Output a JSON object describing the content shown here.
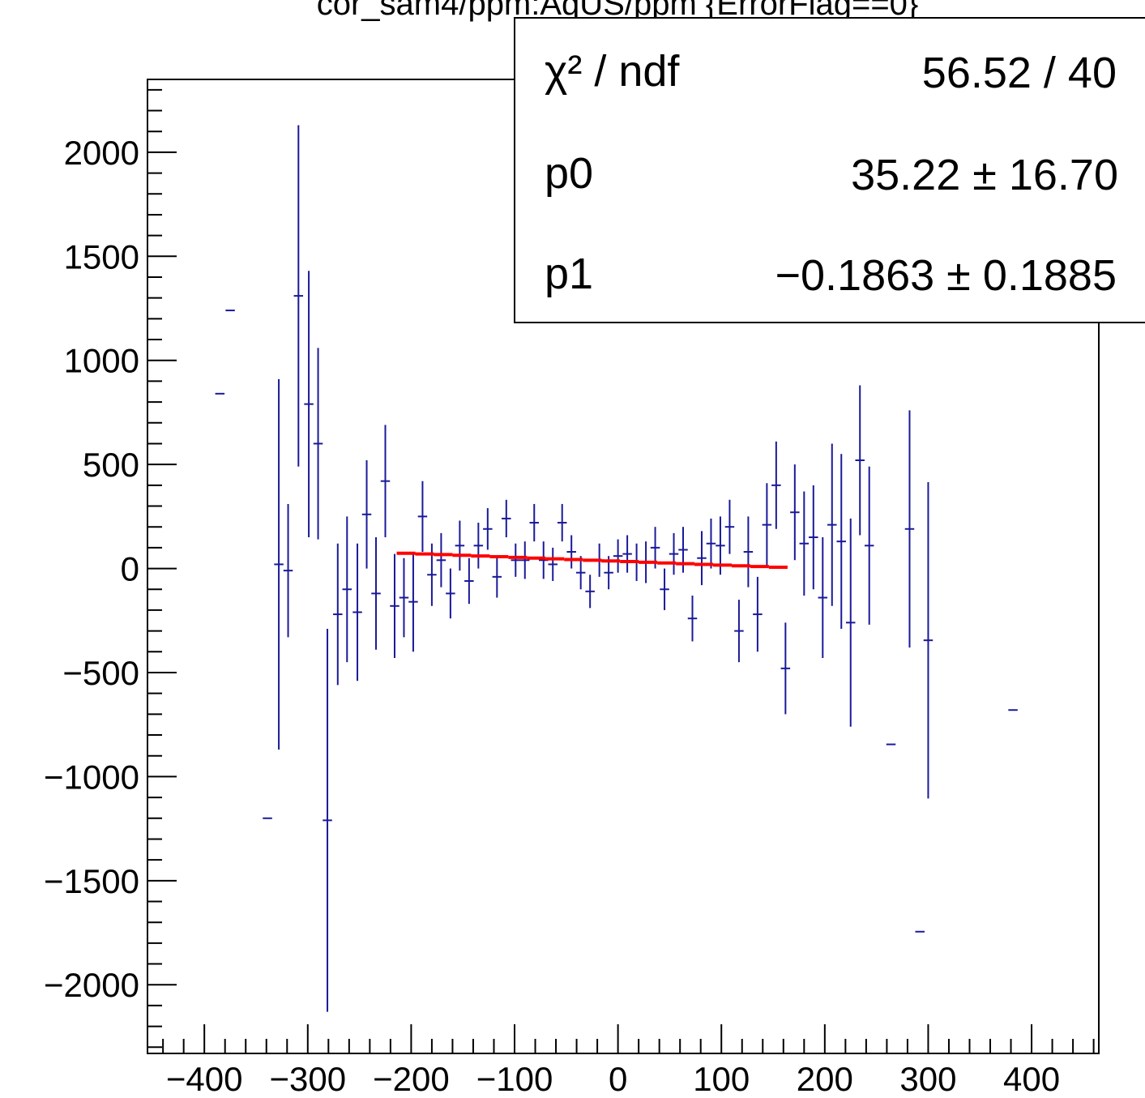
{
  "chart_data": {
    "type": "scatter",
    "title": "cor_sam4/ppm:AqUS/ppm {ErrorFlag==0}",
    "xlabel": "",
    "ylabel": "",
    "xlim": [
      -455,
      465
    ],
    "ylim": [
      -2330,
      2350
    ],
    "grid": false,
    "legend": "none",
    "x_ticks": [
      -400,
      -300,
      -200,
      -100,
      0,
      100,
      200,
      300,
      400
    ],
    "x_tick_labels": [
      "−400",
      "−300",
      "−200",
      "−100",
      "0",
      "100",
      "200",
      "300",
      "400"
    ],
    "y_ticks": [
      2000,
      1500,
      1000,
      500,
      0,
      -500,
      -1000,
      -1500,
      -2000
    ],
    "y_tick_labels": [
      "2000",
      "1500",
      "1000",
      "500",
      "0",
      "−500",
      "−1000",
      "−1500",
      "−2000"
    ],
    "colors": {
      "points": "#1a1a99",
      "fit": "#ff0000",
      "axis": "#000000"
    },
    "series": [
      {
        "type": "errorbar",
        "bin_half_width": 4.5,
        "points": [
          {
            "x": -385,
            "y": 840,
            "err": 0
          },
          {
            "x": -375,
            "y": 1240,
            "err": 0
          },
          {
            "x": -339,
            "y": -1200,
            "err": 0
          },
          {
            "x": -328,
            "y": 20,
            "err": 890
          },
          {
            "x": -319,
            "y": -10,
            "err": 320
          },
          {
            "x": -309,
            "y": 1310,
            "err": 820
          },
          {
            "x": -299,
            "y": 790,
            "err": 640
          },
          {
            "x": -290,
            "y": 600,
            "err": 460
          },
          {
            "x": -281,
            "y": -1210,
            "err": 920
          },
          {
            "x": -271,
            "y": -220,
            "err": 340
          },
          {
            "x": -262,
            "y": -100,
            "err": 350
          },
          {
            "x": -252,
            "y": -210,
            "err": 330
          },
          {
            "x": -243,
            "y": 260,
            "err": 260
          },
          {
            "x": -234,
            "y": -120,
            "err": 270
          },
          {
            "x": -225,
            "y": 420,
            "err": 270
          },
          {
            "x": -216,
            "y": -180,
            "err": 250
          },
          {
            "x": -207,
            "y": -140,
            "err": 190
          },
          {
            "x": -198,
            "y": -160,
            "err": 240
          },
          {
            "x": -189,
            "y": 250,
            "err": 170
          },
          {
            "x": -180,
            "y": -30,
            "err": 150
          },
          {
            "x": -171,
            "y": 40,
            "err": 130
          },
          {
            "x": -162,
            "y": -120,
            "err": 120
          },
          {
            "x": -153,
            "y": 110,
            "err": 120
          },
          {
            "x": -144,
            "y": -60,
            "err": 110
          },
          {
            "x": -135,
            "y": 110,
            "err": 110
          },
          {
            "x": -126,
            "y": 190,
            "err": 100
          },
          {
            "x": -117,
            "y": -40,
            "err": 100
          },
          {
            "x": -108,
            "y": 240,
            "err": 90
          },
          {
            "x": -99,
            "y": 40,
            "err": 80
          },
          {
            "x": -90,
            "y": 40,
            "err": 90
          },
          {
            "x": -81,
            "y": 220,
            "err": 90
          },
          {
            "x": -72,
            "y": 40,
            "err": 90
          },
          {
            "x": -63,
            "y": 20,
            "err": 80
          },
          {
            "x": -54,
            "y": 220,
            "err": 90
          },
          {
            "x": -45,
            "y": 80,
            "err": 80
          },
          {
            "x": -36,
            "y": -20,
            "err": 80
          },
          {
            "x": -27,
            "y": -110,
            "err": 80
          },
          {
            "x": -18,
            "y": 40,
            "err": 80
          },
          {
            "x": -9,
            "y": -20,
            "err": 80
          },
          {
            "x": 0,
            "y": 60,
            "err": 80
          },
          {
            "x": 9,
            "y": 70,
            "err": 90
          },
          {
            "x": 18,
            "y": 30,
            "err": 90
          },
          {
            "x": 27,
            "y": 30,
            "err": 100
          },
          {
            "x": 36,
            "y": 100,
            "err": 100
          },
          {
            "x": 45,
            "y": -100,
            "err": 100
          },
          {
            "x": 54,
            "y": 70,
            "err": 100
          },
          {
            "x": 63,
            "y": 90,
            "err": 110
          },
          {
            "x": 72,
            "y": -240,
            "err": 110
          },
          {
            "x": 81,
            "y": 50,
            "err": 130
          },
          {
            "x": 90,
            "y": 120,
            "err": 120
          },
          {
            "x": 99,
            "y": 110,
            "err": 140
          },
          {
            "x": 108,
            "y": 200,
            "err": 130
          },
          {
            "x": 117,
            "y": -300,
            "err": 150
          },
          {
            "x": 126,
            "y": 80,
            "err": 170
          },
          {
            "x": 135,
            "y": -220,
            "err": 180
          },
          {
            "x": 144,
            "y": 210,
            "err": 200
          },
          {
            "x": 153,
            "y": 400,
            "err": 210
          },
          {
            "x": 162,
            "y": -480,
            "err": 220
          },
          {
            "x": 171,
            "y": 270,
            "err": 230
          },
          {
            "x": 180,
            "y": 120,
            "err": 250
          },
          {
            "x": 189,
            "y": 150,
            "err": 250
          },
          {
            "x": 198,
            "y": -140,
            "err": 290
          },
          {
            "x": 207,
            "y": 210,
            "err": 390
          },
          {
            "x": 216,
            "y": 130,
            "err": 420
          },
          {
            "x": 225,
            "y": -260,
            "err": 500
          },
          {
            "x": 234,
            "y": 520,
            "err": 360
          },
          {
            "x": 243,
            "y": 110,
            "err": 380
          },
          {
            "x": 264,
            "y": -845,
            "err": 0
          },
          {
            "x": 282,
            "y": 190,
            "err": 570
          },
          {
            "x": 292,
            "y": -1745,
            "err": 0
          },
          {
            "x": 300,
            "y": -345,
            "err": 760
          },
          {
            "x": 382,
            "y": -680,
            "err": 0
          }
        ]
      },
      {
        "type": "fit",
        "name": "pol1",
        "x_range": [
          -214,
          164
        ],
        "step": 18,
        "p0": 35.22,
        "p1": -0.1863
      }
    ]
  },
  "stats_box": {
    "rows": [
      {
        "label": "χ² / ndf",
        "value": "56.52 / 40"
      },
      {
        "label": "p0",
        "value": "35.22 ± 16.70"
      },
      {
        "label": "p1",
        "value": "−0.1863 ± 0.1885"
      }
    ]
  }
}
